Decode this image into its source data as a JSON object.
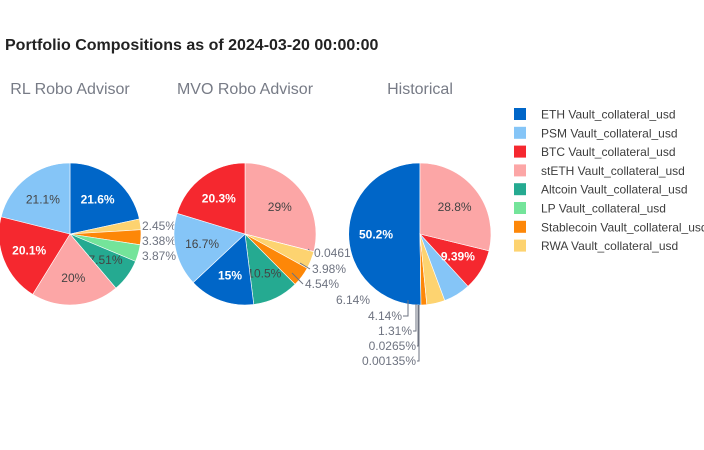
{
  "title": "Portfolio Compositions as of 2024-03-20 00:00:00",
  "legend": [
    {
      "name": "ETH Vault_collateral_usd",
      "color": "#0066c8"
    },
    {
      "name": "PSM Vault_collateral_usd",
      "color": "#85c5f7"
    },
    {
      "name": "BTC Vault_collateral_usd",
      "color": "#f5282f"
    },
    {
      "name": "stETH Vault_collateral_usd",
      "color": "#fca6a6"
    },
    {
      "name": "Altcoin Vault_collateral_usd",
      "color": "#25aa91"
    },
    {
      "name": "LP Vault_collateral_usd",
      "color": "#74e49a"
    },
    {
      "name": "Stablecoin Vault_collateral_usd",
      "color": "#fd8708"
    },
    {
      "name": "RWA Vault_collateral_usd",
      "color": "#fdd370"
    }
  ],
  "chart_data": [
    {
      "type": "pie",
      "title": "RL Robo Advisor",
      "slices": [
        {
          "label": "ETH Vault_collateral_usd",
          "value": 21.6,
          "text": "21.6%"
        },
        {
          "label": "RWA Vault_collateral_usd",
          "value": 2.45,
          "text": "2.45%"
        },
        {
          "label": "Stablecoin Vault_collateral_usd",
          "value": 3.38,
          "text": "3.38%"
        },
        {
          "label": "LP Vault_collateral_usd",
          "value": 3.87,
          "text": "3.87%"
        },
        {
          "label": "Altcoin Vault_collateral_usd",
          "value": 7.51,
          "text": "7.51%"
        },
        {
          "label": "stETH Vault_collateral_usd",
          "value": 20,
          "text": "20%"
        },
        {
          "label": "BTC Vault_collateral_usd",
          "value": 20.1,
          "text": "20.1%"
        },
        {
          "label": "PSM Vault_collateral_usd",
          "value": 21.1,
          "text": "21.1%"
        }
      ]
    },
    {
      "type": "pie",
      "title": "MVO Robo Advisor",
      "slices": [
        {
          "label": "stETH Vault_collateral_usd",
          "value": 29,
          "text": "29%"
        },
        {
          "label": "LP Vault_collateral_usd",
          "value": 0.0461,
          "text": "0.0461"
        },
        {
          "label": "RWA Vault_collateral_usd",
          "value": 3.98,
          "text": "3.98%"
        },
        {
          "label": "Stablecoin Vault_collateral_usd",
          "value": 4.54,
          "text": "4.54%"
        },
        {
          "label": "Altcoin Vault_collateral_usd",
          "value": 10.5,
          "text": "10.5%"
        },
        {
          "label": "ETH Vault_collateral_usd",
          "value": 15,
          "text": "15%"
        },
        {
          "label": "PSM Vault_collateral_usd",
          "value": 16.7,
          "text": "16.7%"
        },
        {
          "label": "BTC Vault_collateral_usd",
          "value": 20.3,
          "text": "20.3%"
        }
      ]
    },
    {
      "type": "pie",
      "title": "Historical",
      "slices": [
        {
          "label": "ETH Vault_collateral_usd",
          "value": 50.2,
          "text": "50.2%"
        },
        {
          "label": "LP Vault_collateral_usd",
          "value": 0.00135,
          "text": "0.00135%"
        },
        {
          "label": "Altcoin Vault_collateral_usd",
          "value": 0.0265,
          "text": "0.0265%"
        },
        {
          "label": "Stablecoin Vault_collateral_usd",
          "value": 1.31,
          "text": "1.31%"
        },
        {
          "label": "RWA Vault_collateral_usd",
          "value": 4.14,
          "text": "4.14%"
        },
        {
          "label": "PSM Vault_collateral_usd",
          "value": 6.14,
          "text": "6.14%"
        },
        {
          "label": "BTC Vault_collateral_usd",
          "value": 9.39,
          "text": "9.39%"
        },
        {
          "label": "stETH Vault_collateral_usd",
          "value": 28.8,
          "text": "28.8%"
        }
      ]
    }
  ]
}
